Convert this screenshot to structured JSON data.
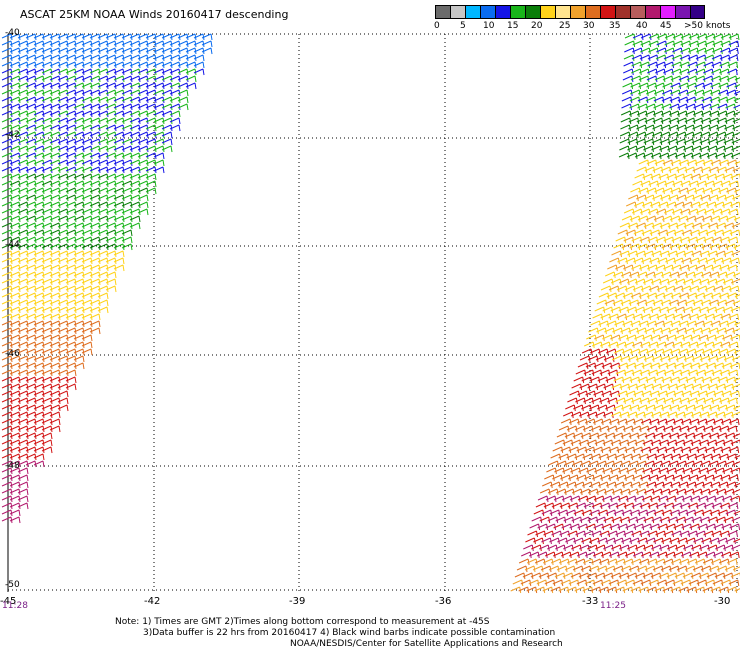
{
  "header": {
    "title": "ASCAT 25KM NOAA Winds 20160417 descending"
  },
  "legend": {
    "colors": [
      "#6b6b6b",
      "#c6c6c6",
      "#00b7ff",
      "#0a6cf0",
      "#1515e6",
      "#19b51a",
      "#0a7e09",
      "#ffd21a",
      "#ffe48f",
      "#f1a22c",
      "#de6d1f",
      "#d21414",
      "#a0312a",
      "#b75d5c",
      "#b2196d",
      "#e31eff",
      "#7a15b0",
      "#340087"
    ],
    "labels": [
      "0",
      "5",
      "10",
      "15",
      "20",
      "25",
      "30",
      "35",
      "40",
      "45",
      ">50 knots"
    ]
  },
  "axes": {
    "lat_labels": [
      "-40",
      "-42",
      "-44",
      "-46",
      "-48",
      "-50"
    ],
    "lon_labels": [
      "-45",
      "-42",
      "-39",
      "-36",
      "-33",
      "-30"
    ]
  },
  "times": {
    "left": "11:28",
    "right": "11:25"
  },
  "notes": {
    "line1": "Note: 1) Times are GMT 2)Times along bottom correspond to measurement at -45S",
    "line2": "3)Data buffer is 22 hrs from 20160417 4) Black wind barbs indicate possible contamination",
    "line3": "NOAA/NESDIS/Center for Satellite Applications and Research"
  }
}
